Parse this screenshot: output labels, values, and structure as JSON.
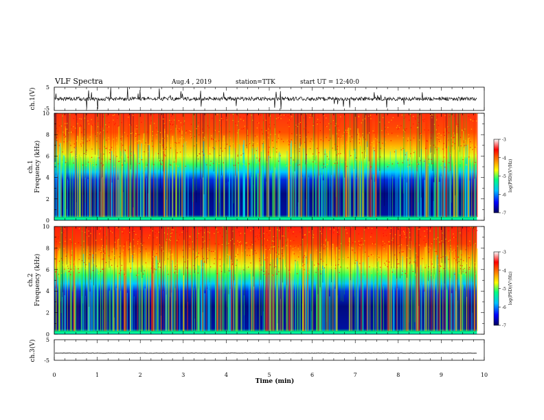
{
  "header": {
    "title": "VLF Spectra",
    "date": "Aug.4 , 2019",
    "station": "station=TTK",
    "start_ut": "start UT =  12:40:0"
  },
  "chart_data": [
    {
      "type": "line",
      "name": "ch1-waveform",
      "ylabel": "ch.1(V)",
      "ylim": [
        -5,
        5
      ],
      "y_ticks": [
        "5",
        "-5"
      ],
      "xlim": [
        0,
        10
      ],
      "baseline": 0,
      "description_values": {
        "typical_amplitude_V": 0.8,
        "spike_max_V": 5
      }
    },
    {
      "type": "heatmap",
      "name": "ch1-spectrogram",
      "ylabel": "ch.1",
      "ylabel2": "Frequency (kHz)",
      "ylim": [
        0,
        10
      ],
      "y_ticks": [
        "0",
        "2",
        "4",
        "6",
        "8",
        "10"
      ],
      "xlim": [
        0,
        10
      ],
      "colorbar": {
        "label": "log(PSD)(V²/Hz)",
        "range": [
          -7,
          -3
        ],
        "ticks": [
          "-3",
          "-4",
          "-5",
          "-6",
          "-7"
        ],
        "colors": [
          "#000060",
          "#0000ff",
          "#00c0ff",
          "#00ff80",
          "#ffff00",
          "#ff8000",
          "#ff0000",
          "#ffffff"
        ]
      }
    },
    {
      "type": "heatmap",
      "name": "ch2-spectrogram",
      "ylabel": "ch.2",
      "ylabel2": "Frequency (kHz)",
      "ylim": [
        0,
        10
      ],
      "y_ticks": [
        "0",
        "2",
        "4",
        "6",
        "8",
        "10"
      ],
      "xlim": [
        0,
        10
      ],
      "colorbar": {
        "label": "log(PSD)(V²/Hz)",
        "range": [
          -7,
          -3
        ],
        "ticks": [
          "-3",
          "-4",
          "-5",
          "-6",
          "-7"
        ],
        "colors": [
          "#000060",
          "#0000ff",
          "#00c0ff",
          "#00ff80",
          "#ffff00",
          "#ff8000",
          "#ff0000",
          "#ffffff"
        ]
      }
    },
    {
      "type": "line",
      "name": "ch3-waveform",
      "ylabel": "ch.3(V)",
      "ylim": [
        -5,
        5
      ],
      "y_ticks": [
        "5",
        "-5"
      ],
      "xlim": [
        0,
        10
      ],
      "baseline": -1.5
    }
  ],
  "x_axis": {
    "label": "Time (min)",
    "ticks": [
      "0",
      "1",
      "2",
      "3",
      "4",
      "5",
      "6",
      "7",
      "8",
      "9",
      "10"
    ],
    "data_end_min": 9.83
  }
}
